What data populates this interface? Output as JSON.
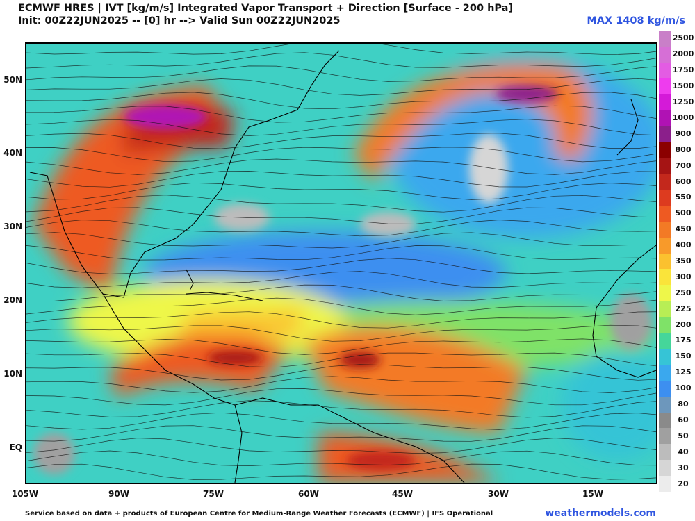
{
  "header": {
    "title_line1": "ECMWF HRES | IVT [kg/m/s] Integrated Vapor Transport + Direction [Surface - 200 hPa]",
    "title_line2": "Init: 00Z22JUN2025 -- [0] hr --> Valid Sun 00Z22JUN2025",
    "max_label": "MAX 1408 kg/m/s"
  },
  "map": {
    "lat_labels": [
      "50N",
      "40N",
      "30N",
      "20N",
      "10N",
      "EQ"
    ],
    "lon_labels": [
      "105W",
      "90W",
      "75W",
      "60W",
      "45W",
      "30W",
      "15W"
    ],
    "lon_range": [
      -105,
      5
    ],
    "lat_range": [
      -5,
      55
    ]
  },
  "colorbar": {
    "levels": [
      "2500",
      "2000",
      "1750",
      "1500",
      "1250",
      "1000",
      "900",
      "800",
      "700",
      "600",
      "550",
      "500",
      "450",
      "400",
      "350",
      "300",
      "250",
      "225",
      "200",
      "175",
      "150",
      "125",
      "100",
      "80",
      "60",
      "50",
      "40",
      "30",
      "20"
    ],
    "colors": [
      "#c97fc8",
      "#d66fd6",
      "#e35ce3",
      "#ee3cee",
      "#d41ad8",
      "#b012b4",
      "#8b1f8b",
      "#8b0000",
      "#a51414",
      "#c3281c",
      "#dd3b1f",
      "#ee5a22",
      "#f37a25",
      "#f89a2a",
      "#fbc12f",
      "#fae43a",
      "#eef74a",
      "#b8ee55",
      "#7fe268",
      "#45d69a",
      "#36c4d6",
      "#3aa8ee",
      "#3d8ff0",
      "#6d97bc",
      "#8a8a8a",
      "#a0a0a0",
      "#bcbcbc",
      "#d6d6d6",
      "#ececec"
    ]
  },
  "footer": {
    "credit": "Service based on data + products of European Centre for Medium-Range Weather Forecasts (ECMWF) | IFS Operational",
    "site": "weathermodels.com"
  }
}
